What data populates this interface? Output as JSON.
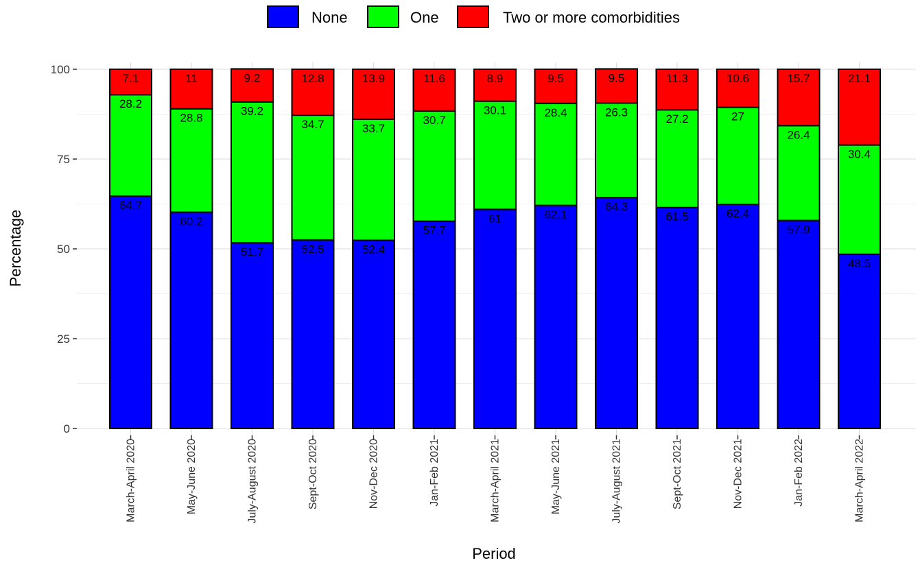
{
  "chart_data": {
    "type": "bar",
    "stacked": true,
    "xlabel": "Period",
    "ylabel": "Percentage",
    "ylim": [
      0,
      100
    ],
    "yticks": [
      0,
      25,
      50,
      75,
      100
    ],
    "grid": true,
    "legend_position": "top",
    "categories": [
      "March-April 2020",
      "May-June 2020",
      "July-August 2020",
      "Sept-Oct 2020",
      "Nov-Dec 2020",
      "Jan-Feb 2021",
      "March-April 2021",
      "May-June 2021",
      "July-August 2021",
      "Sept-Oct 2021",
      "Nov-Dec 2021",
      "Jan-Feb 2022",
      "March-April 2022"
    ],
    "series": [
      {
        "name": "None",
        "color": "#0000ff",
        "values": [
          64.7,
          60.2,
          51.7,
          52.5,
          52.4,
          57.7,
          61,
          62.1,
          64.3,
          61.5,
          62.4,
          57.9,
          48.5
        ]
      },
      {
        "name": "One",
        "color": "#00ff00",
        "values": [
          28.2,
          28.8,
          39.2,
          34.7,
          33.7,
          30.7,
          30.1,
          28.4,
          26.3,
          27.2,
          27,
          26.4,
          30.4
        ]
      },
      {
        "name": "Two or more comorbidities",
        "color": "#ff0000",
        "values": [
          7.1,
          11,
          9.2,
          12.8,
          13.9,
          11.6,
          8.9,
          9.5,
          9.5,
          11.3,
          10.6,
          15.7,
          21.1
        ]
      }
    ]
  }
}
